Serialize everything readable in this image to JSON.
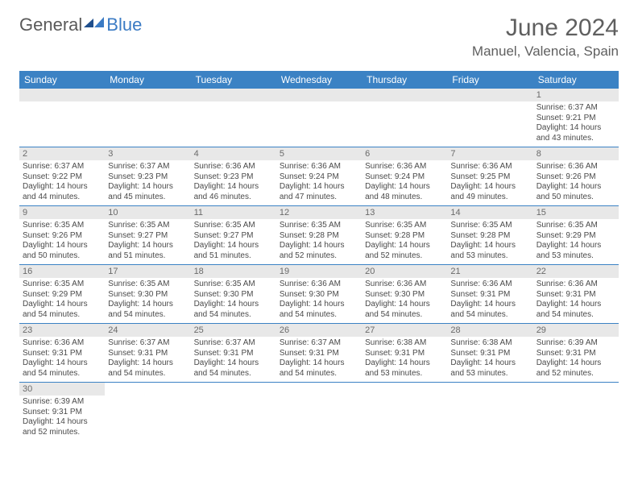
{
  "brand": {
    "general": "General",
    "blue": "Blue"
  },
  "title": "June 2024",
  "location": "Manuel, Valencia, Spain",
  "colors": {
    "header_bg": "#3b82c4",
    "header_text": "#ffffff",
    "daynum_bg": "#e8e8e8",
    "daynum_text": "#6a6a6a",
    "body_text": "#4a4a4a",
    "row_border": "#3b82c4",
    "title_text": "#5f5f5f",
    "logo_gray": "#5a5a5a",
    "logo_blue": "#3b7bc4"
  },
  "weekdays": [
    "Sunday",
    "Monday",
    "Tuesday",
    "Wednesday",
    "Thursday",
    "Friday",
    "Saturday"
  ],
  "weeks": [
    [
      null,
      null,
      null,
      null,
      null,
      null,
      {
        "n": "1",
        "sr": "Sunrise: 6:37 AM",
        "ss": "Sunset: 9:21 PM",
        "dl": "Daylight: 14 hours and 43 minutes."
      }
    ],
    [
      {
        "n": "2",
        "sr": "Sunrise: 6:37 AM",
        "ss": "Sunset: 9:22 PM",
        "dl": "Daylight: 14 hours and 44 minutes."
      },
      {
        "n": "3",
        "sr": "Sunrise: 6:37 AM",
        "ss": "Sunset: 9:23 PM",
        "dl": "Daylight: 14 hours and 45 minutes."
      },
      {
        "n": "4",
        "sr": "Sunrise: 6:36 AM",
        "ss": "Sunset: 9:23 PM",
        "dl": "Daylight: 14 hours and 46 minutes."
      },
      {
        "n": "5",
        "sr": "Sunrise: 6:36 AM",
        "ss": "Sunset: 9:24 PM",
        "dl": "Daylight: 14 hours and 47 minutes."
      },
      {
        "n": "6",
        "sr": "Sunrise: 6:36 AM",
        "ss": "Sunset: 9:24 PM",
        "dl": "Daylight: 14 hours and 48 minutes."
      },
      {
        "n": "7",
        "sr": "Sunrise: 6:36 AM",
        "ss": "Sunset: 9:25 PM",
        "dl": "Daylight: 14 hours and 49 minutes."
      },
      {
        "n": "8",
        "sr": "Sunrise: 6:36 AM",
        "ss": "Sunset: 9:26 PM",
        "dl": "Daylight: 14 hours and 50 minutes."
      }
    ],
    [
      {
        "n": "9",
        "sr": "Sunrise: 6:35 AM",
        "ss": "Sunset: 9:26 PM",
        "dl": "Daylight: 14 hours and 50 minutes."
      },
      {
        "n": "10",
        "sr": "Sunrise: 6:35 AM",
        "ss": "Sunset: 9:27 PM",
        "dl": "Daylight: 14 hours and 51 minutes."
      },
      {
        "n": "11",
        "sr": "Sunrise: 6:35 AM",
        "ss": "Sunset: 9:27 PM",
        "dl": "Daylight: 14 hours and 51 minutes."
      },
      {
        "n": "12",
        "sr": "Sunrise: 6:35 AM",
        "ss": "Sunset: 9:28 PM",
        "dl": "Daylight: 14 hours and 52 minutes."
      },
      {
        "n": "13",
        "sr": "Sunrise: 6:35 AM",
        "ss": "Sunset: 9:28 PM",
        "dl": "Daylight: 14 hours and 52 minutes."
      },
      {
        "n": "14",
        "sr": "Sunrise: 6:35 AM",
        "ss": "Sunset: 9:28 PM",
        "dl": "Daylight: 14 hours and 53 minutes."
      },
      {
        "n": "15",
        "sr": "Sunrise: 6:35 AM",
        "ss": "Sunset: 9:29 PM",
        "dl": "Daylight: 14 hours and 53 minutes."
      }
    ],
    [
      {
        "n": "16",
        "sr": "Sunrise: 6:35 AM",
        "ss": "Sunset: 9:29 PM",
        "dl": "Daylight: 14 hours and 54 minutes."
      },
      {
        "n": "17",
        "sr": "Sunrise: 6:35 AM",
        "ss": "Sunset: 9:30 PM",
        "dl": "Daylight: 14 hours and 54 minutes."
      },
      {
        "n": "18",
        "sr": "Sunrise: 6:35 AM",
        "ss": "Sunset: 9:30 PM",
        "dl": "Daylight: 14 hours and 54 minutes."
      },
      {
        "n": "19",
        "sr": "Sunrise: 6:36 AM",
        "ss": "Sunset: 9:30 PM",
        "dl": "Daylight: 14 hours and 54 minutes."
      },
      {
        "n": "20",
        "sr": "Sunrise: 6:36 AM",
        "ss": "Sunset: 9:30 PM",
        "dl": "Daylight: 14 hours and 54 minutes."
      },
      {
        "n": "21",
        "sr": "Sunrise: 6:36 AM",
        "ss": "Sunset: 9:31 PM",
        "dl": "Daylight: 14 hours and 54 minutes."
      },
      {
        "n": "22",
        "sr": "Sunrise: 6:36 AM",
        "ss": "Sunset: 9:31 PM",
        "dl": "Daylight: 14 hours and 54 minutes."
      }
    ],
    [
      {
        "n": "23",
        "sr": "Sunrise: 6:36 AM",
        "ss": "Sunset: 9:31 PM",
        "dl": "Daylight: 14 hours and 54 minutes."
      },
      {
        "n": "24",
        "sr": "Sunrise: 6:37 AM",
        "ss": "Sunset: 9:31 PM",
        "dl": "Daylight: 14 hours and 54 minutes."
      },
      {
        "n": "25",
        "sr": "Sunrise: 6:37 AM",
        "ss": "Sunset: 9:31 PM",
        "dl": "Daylight: 14 hours and 54 minutes."
      },
      {
        "n": "26",
        "sr": "Sunrise: 6:37 AM",
        "ss": "Sunset: 9:31 PM",
        "dl": "Daylight: 14 hours and 54 minutes."
      },
      {
        "n": "27",
        "sr": "Sunrise: 6:38 AM",
        "ss": "Sunset: 9:31 PM",
        "dl": "Daylight: 14 hours and 53 minutes."
      },
      {
        "n": "28",
        "sr": "Sunrise: 6:38 AM",
        "ss": "Sunset: 9:31 PM",
        "dl": "Daylight: 14 hours and 53 minutes."
      },
      {
        "n": "29",
        "sr": "Sunrise: 6:39 AM",
        "ss": "Sunset: 9:31 PM",
        "dl": "Daylight: 14 hours and 52 minutes."
      }
    ],
    [
      {
        "n": "30",
        "sr": "Sunrise: 6:39 AM",
        "ss": "Sunset: 9:31 PM",
        "dl": "Daylight: 14 hours and 52 minutes."
      },
      null,
      null,
      null,
      null,
      null,
      null
    ]
  ]
}
